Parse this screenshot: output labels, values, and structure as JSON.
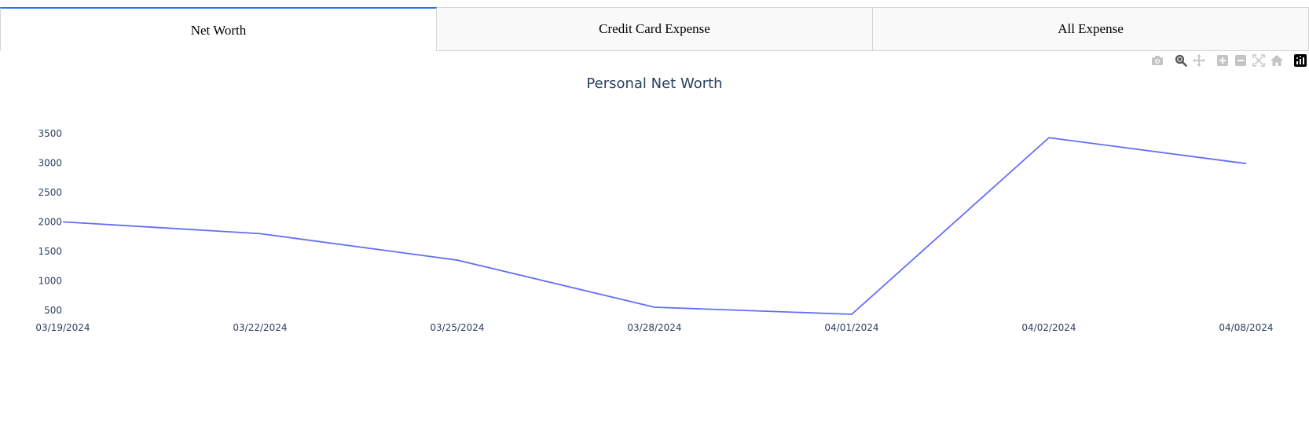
{
  "tabs": [
    {
      "label": "Net Worth",
      "active": true
    },
    {
      "label": "Credit Card Expense",
      "active": false
    },
    {
      "label": "All Expense",
      "active": false
    }
  ],
  "modebar": {
    "buttons": [
      "camera-icon",
      "zoom-icon",
      "pan-icon",
      "zoom-in-icon",
      "zoom-out-icon",
      "autoscale-icon",
      "reset-axes-icon",
      "plotly-logo-icon"
    ]
  },
  "colors": {
    "accent": "#1975fa",
    "line": "#636efa",
    "axis_text": "#2a3f5f"
  },
  "chart_data": {
    "type": "line",
    "title": "Personal Net Worth",
    "x": [
      "03/19/2024",
      "03/22/2024",
      "03/25/2024",
      "03/28/2024",
      "04/01/2024",
      "04/02/2024",
      "04/08/2024"
    ],
    "series": [
      {
        "values": [
          2000,
          1800,
          1350,
          550,
          430,
          3430,
          2990
        ]
      }
    ],
    "yticks": [
      500,
      1000,
      1500,
      2000,
      2500,
      3000,
      3500
    ],
    "ylim": [
      430,
      3580
    ],
    "grid": false,
    "legend": false
  }
}
